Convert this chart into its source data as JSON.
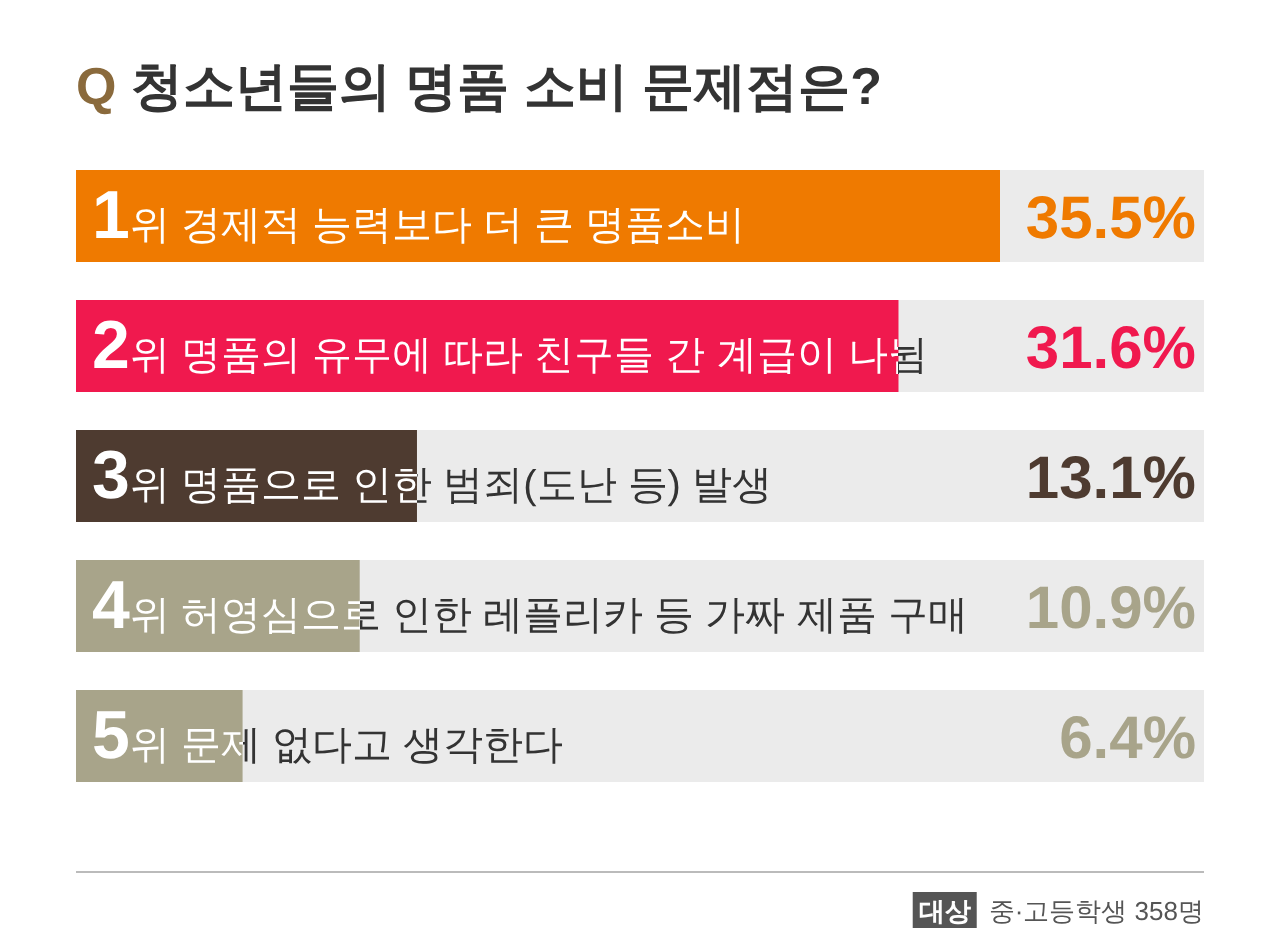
{
  "chart_data": {
    "type": "bar",
    "orientation": "horizontal",
    "title": "Q 청소년들의 명품 소비 문제점은?",
    "categories": [
      "1위 경제적 능력보다 더 큰 명품소비",
      "2위 명품의 유무에 따라 친구들 간 계급이 나뉨",
      "3위 명품으로 인한 범죄(도난 등) 발생",
      "4위 허영심으로 인한 레플리카 등 가짜 제품 구매",
      "5위 문제 없다고 생각한다"
    ],
    "values": [
      35.5,
      31.6,
      13.1,
      10.9,
      6.4
    ],
    "colors": [
      "#ef7a00",
      "#f0194e",
      "#4e3b30",
      "#a8a48a",
      "#a8a48a"
    ],
    "value_labels": [
      "35.5%",
      "31.6%",
      "13.1%",
      "10.9%",
      "6.4%"
    ],
    "annotations": [
      "대상 중·고등학생 358명"
    ]
  }
}
